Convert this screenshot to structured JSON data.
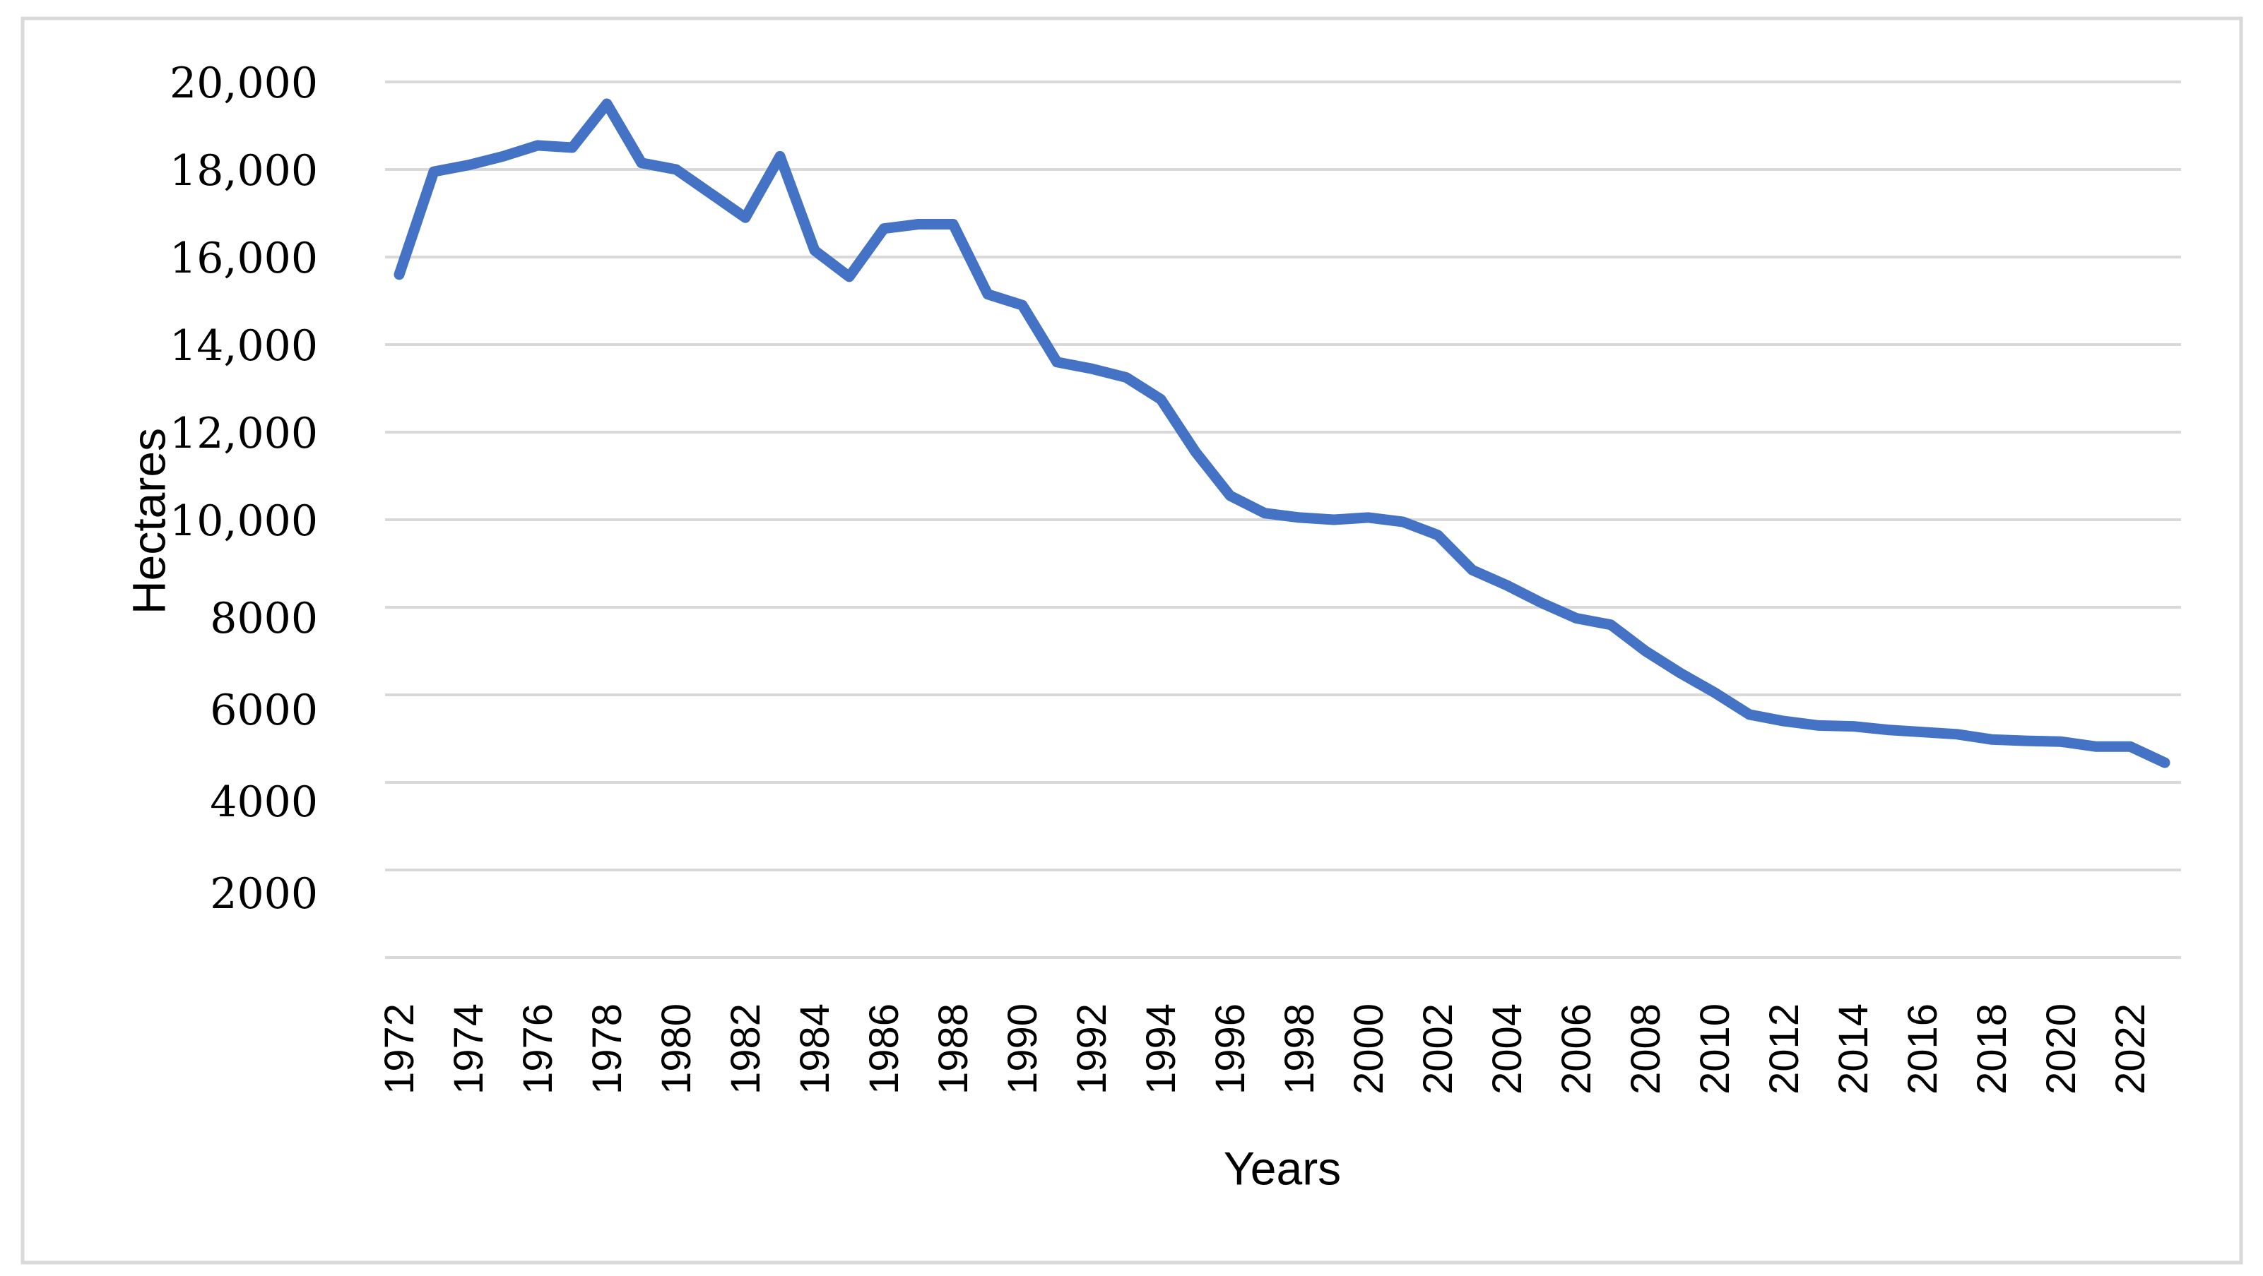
{
  "chart_data": {
    "type": "line",
    "title": "",
    "xlabel": "Years",
    "ylabel": "Hectares",
    "ylim": [
      0,
      20000
    ],
    "grid": true,
    "legend": "none",
    "line_color": "#4472C4",
    "yticks": [
      {
        "value": 20000,
        "label": "20,000"
      },
      {
        "value": 18000,
        "label": "18,000"
      },
      {
        "value": 16000,
        "label": "16,000"
      },
      {
        "value": 14000,
        "label": "14,000"
      },
      {
        "value": 12000,
        "label": "12,000"
      },
      {
        "value": 10000,
        "label": "10,000"
      },
      {
        "value": 8000,
        "label": "8000"
      },
      {
        "value": 6000,
        "label": "6000"
      },
      {
        "value": 4000,
        "label": "4000"
      },
      {
        "value": 2000,
        "label": "2000"
      }
    ],
    "xtick_labels": [
      "1972",
      "1974",
      "1976",
      "1978",
      "1980",
      "1982",
      "1984",
      "1986",
      "1988",
      "1990",
      "1992",
      "1994",
      "1996",
      "1998",
      "2000",
      "2002",
      "2004",
      "2006",
      "2008",
      "2010",
      "2012",
      "2014",
      "2016",
      "2018",
      "2020",
      "2022"
    ],
    "x": [
      1972,
      1973,
      1974,
      1975,
      1976,
      1977,
      1978,
      1979,
      1980,
      1981,
      1982,
      1983,
      1984,
      1985,
      1986,
      1987,
      1988,
      1989,
      1990,
      1991,
      1992,
      1993,
      1994,
      1995,
      1996,
      1997,
      1998,
      1999,
      2000,
      2001,
      2002,
      2003,
      2004,
      2005,
      2006,
      2007,
      2008,
      2009,
      2010,
      2011,
      2012,
      2013,
      2014,
      2015,
      2016,
      2017,
      2018,
      2019,
      2020,
      2021,
      2022,
      2023
    ],
    "series": [
      {
        "values": [
          15600,
          17950,
          18100,
          18300,
          18550,
          18500,
          19500,
          18150,
          18000,
          17450,
          16900,
          18300,
          16150,
          15550,
          16650,
          16750,
          16750,
          15150,
          14900,
          13600,
          13450,
          13250,
          12750,
          11550,
          10550,
          10150,
          10050,
          10000,
          10050,
          9950,
          9650,
          8850,
          8500,
          8100,
          7750,
          7600,
          7000,
          6500,
          6050,
          5550,
          5400,
          5300,
          5280,
          5200,
          5150,
          5100,
          4980,
          4950,
          4930,
          4820,
          4820,
          4450
        ]
      }
    ]
  }
}
